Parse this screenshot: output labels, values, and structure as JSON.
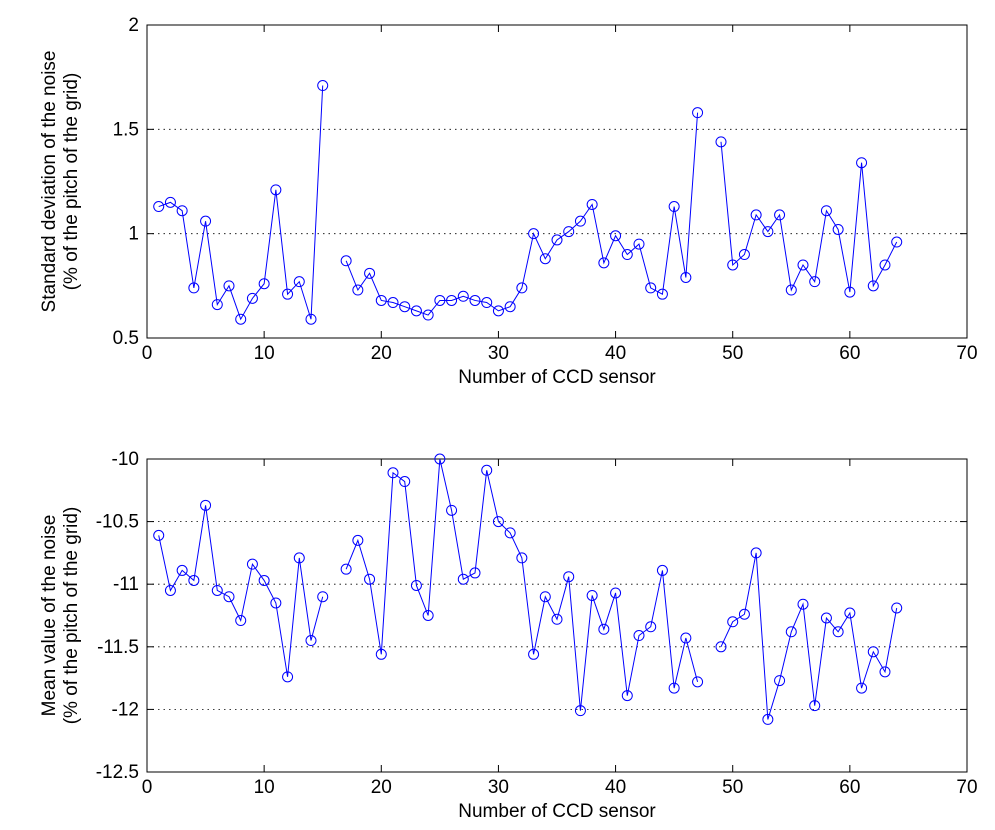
{
  "chart_data": [
    {
      "type": "line",
      "xlabel": "Number of CCD sensor",
      "ylabel": [
        "Standard deviation of the noise",
        "(% of the pitch of the grid)"
      ],
      "xlim": [
        0,
        70
      ],
      "ylim": [
        0.5,
        2
      ],
      "xticks": [
        "0",
        "10",
        "20",
        "30",
        "40",
        "50",
        "60",
        "70"
      ],
      "yticks": [
        "0.5",
        "1",
        "1.5",
        "2"
      ],
      "grid": "horizontal-dotted",
      "line_color": "#0000ff",
      "marker": "circle",
      "series": [
        {
          "x": [
            1,
            2,
            3,
            4,
            5,
            6,
            7,
            8,
            9,
            10,
            11,
            12,
            13,
            14,
            15,
            16,
            17,
            18,
            19,
            20,
            21,
            22,
            23,
            24,
            25,
            26,
            27,
            28,
            29,
            30,
            31,
            32,
            33,
            34,
            35,
            36,
            37,
            38,
            39,
            40,
            41,
            42,
            43,
            44,
            45,
            46,
            47,
            48,
            49,
            50,
            51,
            52,
            53,
            54,
            55,
            56,
            57,
            58,
            59,
            60,
            61,
            62,
            63,
            64
          ],
          "y": [
            1.13,
            1.15,
            1.11,
            0.74,
            1.06,
            0.66,
            0.75,
            0.59,
            0.69,
            0.76,
            1.21,
            0.71,
            0.77,
            0.59,
            1.71,
            null,
            0.87,
            0.73,
            0.81,
            0.68,
            0.67,
            0.65,
            0.63,
            0.61,
            0.68,
            0.68,
            0.7,
            0.68,
            0.67,
            0.63,
            0.65,
            0.74,
            1.0,
            0.88,
            0.97,
            1.01,
            1.06,
            1.14,
            0.86,
            0.99,
            0.9,
            0.95,
            0.74,
            0.71,
            1.13,
            0.79,
            1.58,
            null,
            1.44,
            0.85,
            0.9,
            1.09,
            1.01,
            1.09,
            0.73,
            0.85,
            0.77,
            1.11,
            1.02,
            0.72,
            1.34,
            0.75,
            0.85,
            0.96
          ]
        }
      ]
    },
    {
      "type": "line",
      "xlabel": "Number of CCD sensor",
      "ylabel": [
        "Mean value of the noise",
        "(% of the pitch of the grid)"
      ],
      "xlim": [
        0,
        70
      ],
      "ylim": [
        -12.5,
        -10
      ],
      "xticks": [
        "0",
        "10",
        "20",
        "30",
        "40",
        "50",
        "60",
        "70"
      ],
      "yticks": [
        "-12.5",
        "-12",
        "-11.5",
        "-11",
        "-10.5",
        "-10"
      ],
      "grid": "horizontal-dotted",
      "line_color": "#0000ff",
      "marker": "circle",
      "series": [
        {
          "x": [
            1,
            2,
            3,
            4,
            5,
            6,
            7,
            8,
            9,
            10,
            11,
            12,
            13,
            14,
            15,
            16,
            17,
            18,
            19,
            20,
            21,
            22,
            23,
            24,
            25,
            26,
            27,
            28,
            29,
            30,
            31,
            32,
            33,
            34,
            35,
            36,
            37,
            38,
            39,
            40,
            41,
            42,
            43,
            44,
            45,
            46,
            47,
            48,
            49,
            50,
            51,
            52,
            53,
            54,
            55,
            56,
            57,
            58,
            59,
            60,
            61,
            62,
            63,
            64
          ],
          "y": [
            -10.61,
            -11.05,
            -10.89,
            -10.97,
            -10.37,
            -11.05,
            -11.1,
            -11.29,
            -10.84,
            -10.97,
            -11.15,
            -11.74,
            -10.79,
            -11.45,
            -11.1,
            null,
            -10.88,
            -10.65,
            -10.96,
            -11.56,
            -10.11,
            -10.18,
            -11.01,
            -11.25,
            -10.0,
            -10.41,
            -10.96,
            -10.91,
            -10.09,
            -10.5,
            -10.59,
            -10.79,
            -11.56,
            -11.1,
            -11.28,
            -10.94,
            -12.01,
            -11.09,
            -11.36,
            -11.07,
            -11.89,
            -11.41,
            -11.34,
            -10.89,
            -11.83,
            -11.43,
            -11.78,
            null,
            -11.5,
            -11.3,
            -11.24,
            -10.75,
            -12.08,
            -11.77,
            -11.38,
            -11.16,
            -11.97,
            -11.27,
            -11.38,
            -11.23,
            -11.83,
            -11.54,
            -11.7,
            -11.19
          ]
        }
      ]
    }
  ]
}
